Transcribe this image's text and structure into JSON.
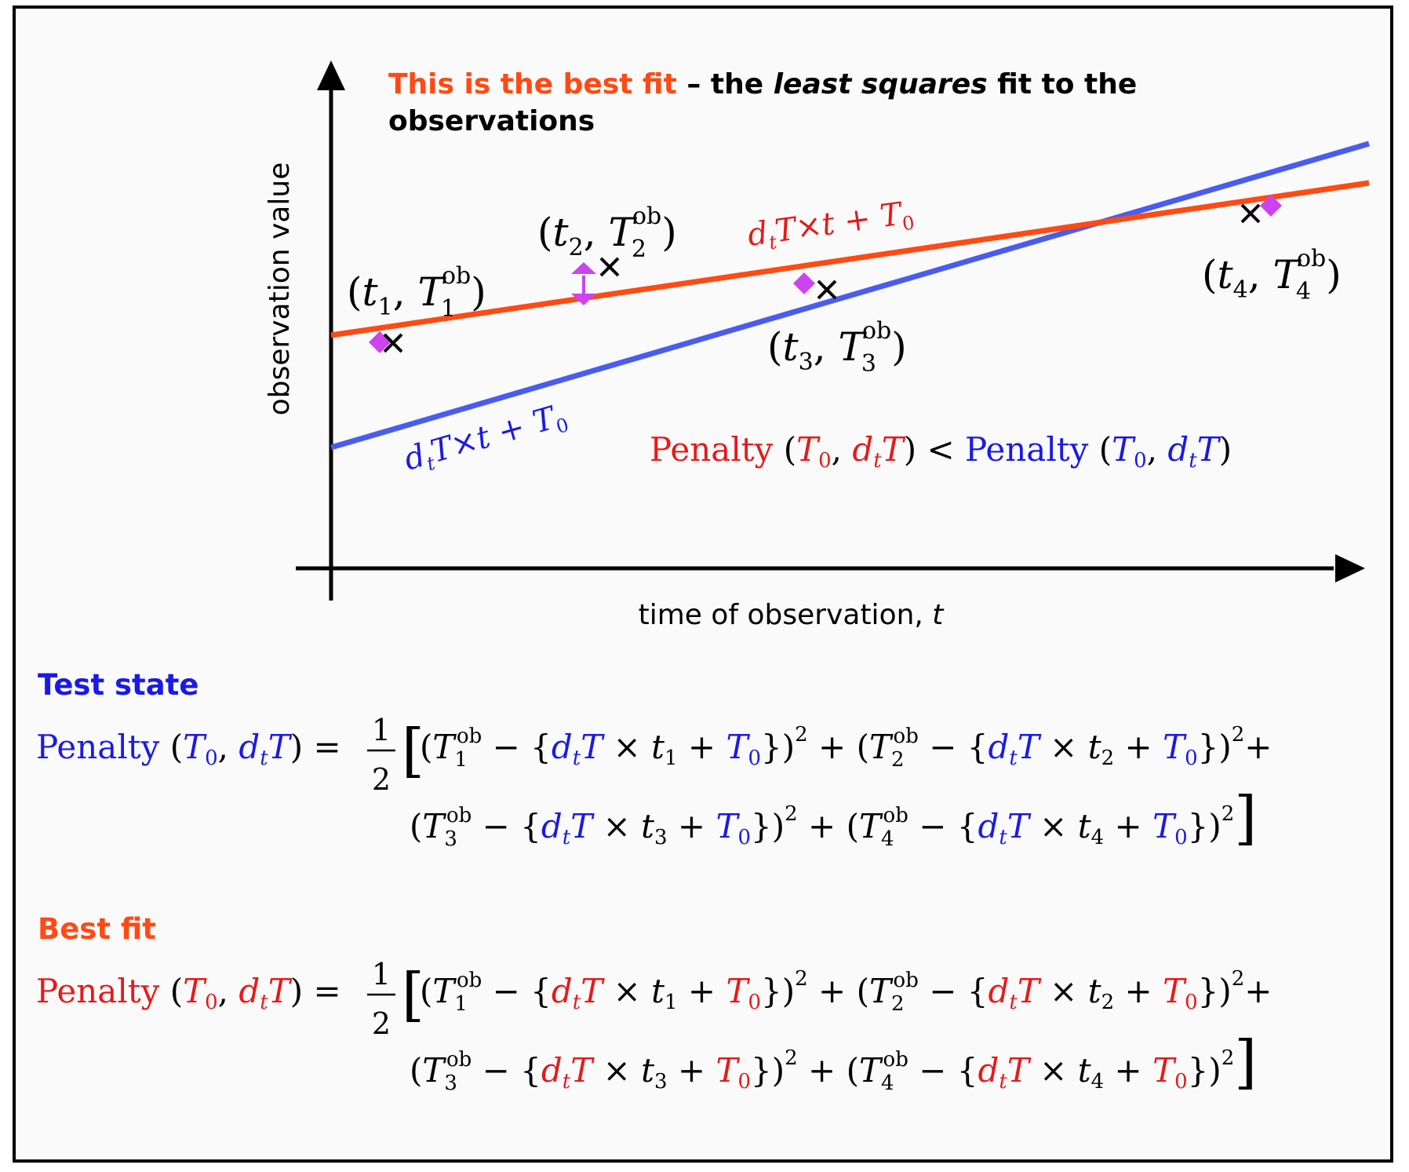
{
  "header": {
    "highlight": "This is the best fit",
    "dash": " – the ",
    "emph": "least squares",
    "rest": " fit to the",
    "line2": "observations"
  },
  "axes": {
    "ylabel": "observation value",
    "xlabel": "time of observation, ",
    "xlabel_var": "t"
  },
  "points": [
    {
      "label": "t1",
      "sub_t": "1",
      "sub_T": "1"
    },
    {
      "label": "t2",
      "sub_t": "2",
      "sub_T": "2"
    },
    {
      "label": "t3",
      "sub_t": "3",
      "sub_T": "3"
    },
    {
      "label": "t4",
      "sub_t": "4",
      "sub_T": "4"
    }
  ],
  "lines": {
    "best_fit_label": "dtT×t + T0",
    "test_label": "dtT×t + T0",
    "best_fit_color": "#ff4a14",
    "test_color": "#4a5cf0"
  },
  "comparison": "Penalty (T0, dtT) < Penalty (T0, dtT)",
  "sections": {
    "test_state": {
      "title": "Test state",
      "color": "#1a1ae6"
    },
    "best_fit": {
      "title": "Best fit",
      "color": "#ff4a14"
    }
  },
  "equation": {
    "penalty": "Penalty",
    "frac_num": "1",
    "frac_den": "2",
    "superscript_ob": "ob",
    "square": "2"
  },
  "markers": {
    "observation": "×",
    "projection": "diamond",
    "projection_color": "#cc44ee"
  }
}
